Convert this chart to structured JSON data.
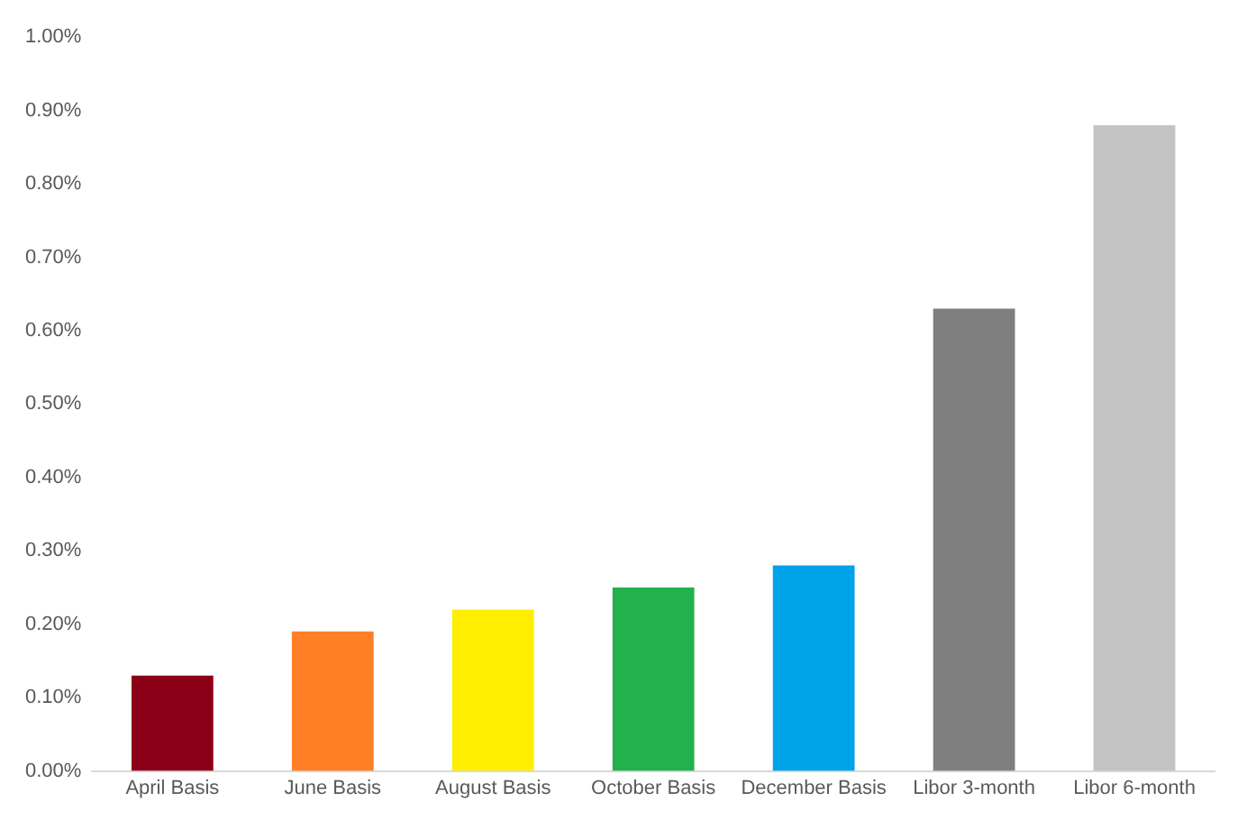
{
  "chart_data": {
    "type": "bar",
    "categories": [
      "April Basis",
      "June Basis",
      "August Basis",
      "October Basis",
      "December Basis",
      "Libor 3-month",
      "Libor 6-month"
    ],
    "values": [
      0.13,
      0.19,
      0.22,
      0.25,
      0.28,
      0.63,
      0.88
    ],
    "colors": [
      "#8b0016",
      "#ff7f27",
      "#ffee00",
      "#22b14c",
      "#00a2e8",
      "#7f7f7f",
      "#c3c3c3"
    ],
    "ylim": [
      0,
      1
    ],
    "yticks": [
      {
        "value": 0,
        "label": "0.00%"
      },
      {
        "value": 0.1,
        "label": "0.10%"
      },
      {
        "value": 0.2,
        "label": "0.20%"
      },
      {
        "value": 0.3,
        "label": "0.30%"
      },
      {
        "value": 0.4,
        "label": "0.40%"
      },
      {
        "value": 0.5,
        "label": "0.50%"
      },
      {
        "value": 0.6,
        "label": "0.60%"
      },
      {
        "value": 0.7,
        "label": "0.70%"
      },
      {
        "value": 0.8,
        "label": "0.80%"
      },
      {
        "value": 0.9,
        "label": "0.90%"
      },
      {
        "value": 1,
        "label": "1.00%"
      }
    ],
    "grid": false
  }
}
